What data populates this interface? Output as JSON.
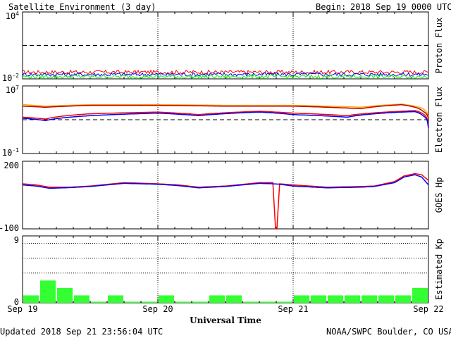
{
  "header": {
    "title": "Satellite Environment (3 day)",
    "begin_label": "Begin:",
    "begin_value": "2018 Sep 19 0000 UTC"
  },
  "footer": {
    "updated": "Updated 2018 Sep 21 23:56:04 UTC",
    "credit": "NOAA/SWPC Boulder, CO USA"
  },
  "x_axis": {
    "label": "Universal Time",
    "ticks": [
      "Sep 19",
      "Sep 20",
      "Sep 21",
      "Sep 22"
    ]
  },
  "colors": {
    "red": "#ff0000",
    "blue": "#0000ff",
    "green": "#00ff00",
    "orange": "#ffa500",
    "darkred": "#c00000",
    "kp_bar": "#33ff33"
  },
  "chart_data": [
    {
      "type": "line",
      "name_panel": "proton",
      "ylabel": "Proton Flux",
      "y_scale": "log",
      "ylim": [
        0.01,
        10000
      ],
      "y_tick_labels": [
        "10^4",
        "10^-2"
      ],
      "threshold": 10,
      "x_range_days": [
        0,
        3
      ],
      "series": [
        {
          "color": "red",
          "baseline": 0.04
        },
        {
          "color": "blue",
          "baseline": 0.025
        },
        {
          "color": "green",
          "baseline": 0.016
        }
      ]
    },
    {
      "type": "line",
      "name_panel": "electron",
      "ylabel": "Electron Flux",
      "y_scale": "log",
      "ylim": [
        0.1,
        10000000
      ],
      "y_tick_labels": [
        "10^7",
        "10^-1"
      ],
      "threshold": 1000,
      "x_range_days": [
        0,
        3
      ],
      "series": [
        {
          "color": "orange",
          "x": [
            0,
            0.17,
            0.5,
            1.0,
            1.5,
            1.75,
            2.0,
            2.5,
            2.8,
            2.9,
            2.96,
            3.0
          ],
          "y": [
            60000,
            40000,
            60000,
            60000,
            50000,
            50000,
            50000,
            30000,
            70000,
            40000,
            20000,
            2000
          ]
        },
        {
          "color": "darkred",
          "x": [
            0,
            0.17,
            0.5,
            1.0,
            1.5,
            1.75,
            2.0,
            2.5,
            2.8,
            2.9,
            2.96,
            3.0
          ],
          "y": [
            40000,
            30000,
            50000,
            50000,
            40000,
            40000,
            40000,
            20000,
            60000,
            30000,
            10000,
            1500
          ]
        },
        {
          "color": "red",
          "x": [
            0,
            0.17,
            0.5,
            1.0,
            1.3,
            1.75,
            2.0,
            2.4,
            2.8,
            2.9,
            2.96,
            3.0
          ],
          "y": [
            2000,
            1200,
            5000,
            8000,
            4000,
            10000,
            6000,
            3000,
            10000,
            12000,
            5000,
            200
          ]
        },
        {
          "color": "blue",
          "x": [
            0,
            0.17,
            0.5,
            1.0,
            1.3,
            1.75,
            2.0,
            2.4,
            2.8,
            2.9,
            2.96,
            3.0
          ],
          "y": [
            1500,
            800,
            3000,
            6000,
            3000,
            8000,
            4000,
            2000,
            8000,
            9000,
            3000,
            100
          ]
        }
      ]
    },
    {
      "type": "line",
      "name_panel": "goes_hp",
      "ylabel": "GOES Hp",
      "ylim": [
        -100,
        200
      ],
      "y_tick_labels": [
        "200",
        "-100"
      ],
      "x_range_days": [
        0,
        3
      ],
      "series": [
        {
          "color": "red",
          "x": [
            0,
            0.1,
            0.2,
            0.35,
            0.5,
            0.75,
            1.0,
            1.15,
            1.3,
            1.5,
            1.75,
            1.85,
            1.87,
            1.88,
            1.9,
            2.0,
            2.25,
            2.5,
            2.6,
            2.75,
            2.82,
            2.9,
            2.95,
            3.0
          ],
          "y": [
            100,
            95,
            85,
            85,
            90,
            105,
            100,
            95,
            85,
            90,
            105,
            105,
            -100,
            -100,
            100,
            95,
            85,
            88,
            90,
            110,
            135,
            145,
            140,
            115
          ]
        },
        {
          "color": "blue",
          "x": [
            0,
            0.1,
            0.2,
            0.35,
            0.5,
            0.75,
            1.0,
            1.15,
            1.3,
            1.5,
            1.75,
            1.85,
            1.9,
            2.0,
            2.25,
            2.5,
            2.6,
            2.75,
            2.82,
            2.9,
            2.95,
            3.0
          ],
          "y": [
            95,
            90,
            80,
            83,
            88,
            102,
            98,
            92,
            82,
            88,
            102,
            100,
            98,
            90,
            82,
            85,
            88,
            105,
            130,
            140,
            130,
            95
          ]
        }
      ]
    },
    {
      "type": "bar",
      "name_panel": "kp",
      "ylabel": "Estimated Kp",
      "ylim": [
        0,
        9
      ],
      "y_tick_labels": [
        "9",
        "0"
      ],
      "gridlines": [
        4,
        6,
        8
      ],
      "bar_width_hours": 3,
      "values": [
        1,
        3,
        2,
        1,
        0,
        1,
        0,
        0,
        1,
        0,
        0,
        1,
        1,
        0,
        0,
        0,
        1,
        1,
        1,
        1,
        1,
        1,
        1,
        2
      ]
    }
  ]
}
